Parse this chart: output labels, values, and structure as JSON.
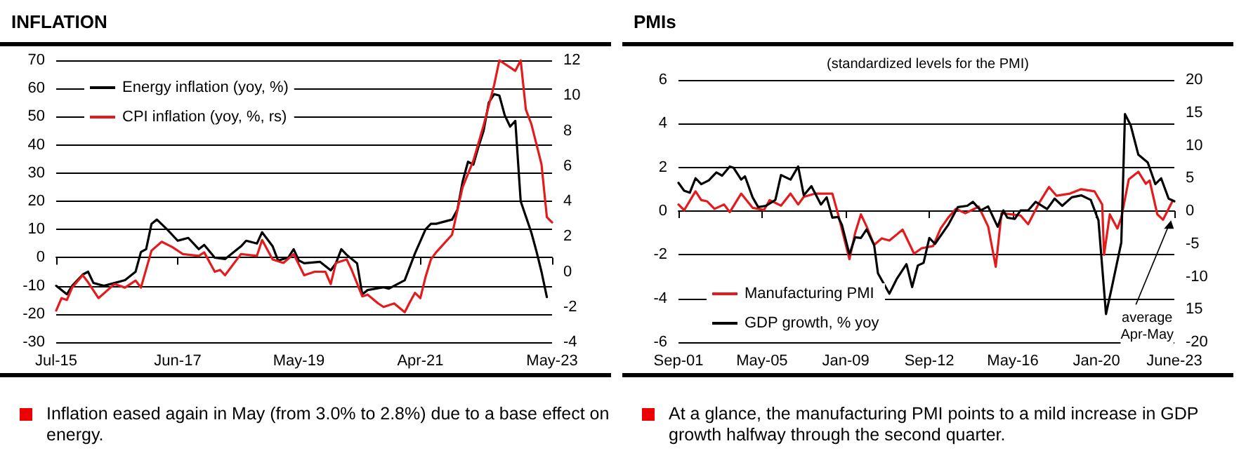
{
  "chart_data": [
    {
      "type": "line",
      "title": "INFLATION",
      "annotations": [
        "Inflation eased again in May (from 3.0% to 2.8%) due to a base effect on energy."
      ],
      "xlim": [
        "2015-07",
        "2023-05"
      ],
      "xticks": [
        {
          "value": "2015-07",
          "label": "Jul-15"
        },
        {
          "value": "2017-06",
          "label": "Jun-17"
        },
        {
          "value": "2019-05",
          "label": "May-19"
        },
        {
          "value": "2021-04",
          "label": "Apr-21"
        },
        {
          "value": "2023-05",
          "label": "May-23"
        }
      ],
      "ylim": [
        -30,
        70
      ],
      "yticks": [
        -30,
        -20,
        -10,
        0,
        10,
        20,
        30,
        40,
        50,
        60,
        70
      ],
      "y2lim": [
        -4,
        12
      ],
      "y2ticks": [
        -4,
        -2,
        0,
        2,
        4,
        6,
        8,
        10,
        12
      ],
      "grid": "y",
      "legend": "top left",
      "marker": "none",
      "series": [
        {
          "name": "Energy inflation (yoy, %)",
          "color": "#000000",
          "x": [
            "2015-07",
            "2015-09",
            "2015-10",
            "2015-12",
            "2016-01",
            "2016-02",
            "2016-04",
            "2016-06",
            "2016-08",
            "2016-10",
            "2016-11",
            "2016-12",
            "2017-01",
            "2017-02",
            "2017-04",
            "2017-06",
            "2017-08",
            "2017-10",
            "2017-11",
            "2018-01",
            "2018-03",
            "2018-06",
            "2018-07",
            "2018-09",
            "2018-10",
            "2018-12",
            "2019-01",
            "2019-03",
            "2019-04",
            "2019-05",
            "2019-06",
            "2019-09",
            "2019-11",
            "2019-12",
            "2020-01",
            "2020-02",
            "2020-04",
            "2020-05",
            "2020-06",
            "2020-09",
            "2020-10",
            "2020-11",
            "2021-01",
            "2021-03",
            "2021-05",
            "2021-06",
            "2021-07",
            "2021-10",
            "2021-11",
            "2021-12",
            "2022-01",
            "2022-02",
            "2022-03",
            "2022-04",
            "2022-05",
            "2022-06",
            "2022-07",
            "2022-08",
            "2022-09",
            "2022-10",
            "2022-11",
            "2023-01",
            "2023-02",
            "2023-03",
            "2023-04"
          ],
          "values": [
            -10,
            -13,
            -10,
            -6,
            -5,
            -9,
            -10,
            -9,
            -8,
            -5,
            2,
            3,
            12,
            13.5,
            10,
            6,
            7,
            3,
            4.5,
            0,
            -0.5,
            4,
            6,
            5,
            9,
            4,
            -1,
            0,
            3,
            -1,
            -2,
            -1.5,
            -4.5,
            -2,
            3,
            1,
            -2,
            -13,
            -11.5,
            -10.5,
            -11,
            -10,
            -8,
            1.5,
            10,
            12,
            12,
            13.5,
            17,
            27,
            34,
            33,
            39,
            45,
            55,
            58,
            57.5,
            50.5,
            46.5,
            48.5,
            20,
            9,
            2,
            -5,
            -14
          ]
        },
        {
          "name": "CPI inflation (yoy, %, rs)",
          "color": "#e41a1c",
          "axis": "y2",
          "x": [
            "2015-07",
            "2015-08",
            "2015-09",
            "2015-10",
            "2015-12",
            "2016-01",
            "2016-03",
            "2016-06",
            "2016-08",
            "2016-10",
            "2016-11",
            "2017-01",
            "2017-03",
            "2017-05",
            "2017-07",
            "2017-10",
            "2017-11",
            "2018-01",
            "2018-02",
            "2018-03",
            "2018-06",
            "2018-09",
            "2018-10",
            "2018-12",
            "2019-02",
            "2019-04",
            "2019-06",
            "2019-08",
            "2019-10",
            "2019-11",
            "2019-12",
            "2020-02",
            "2020-03",
            "2020-05",
            "2020-06",
            "2020-08",
            "2020-09",
            "2020-11",
            "2021-01",
            "2021-02",
            "2021-03",
            "2021-04",
            "2021-05",
            "2021-06",
            "2021-07",
            "2021-10",
            "2021-11",
            "2021-12",
            "2022-02",
            "2022-04",
            "2022-06",
            "2022-07",
            "2022-09",
            "2022-10",
            "2022-11",
            "2022-12",
            "2023-01",
            "2023-02",
            "2023-03",
            "2023-04",
            "2023-05"
          ],
          "values": [
            -2.2,
            -1.5,
            -1.6,
            -0.9,
            -0.2,
            -0.6,
            -1.5,
            -0.7,
            -0.9,
            -0.5,
            -0.9,
            1.2,
            1.7,
            1.4,
            1,
            0.9,
            1.1,
            0,
            0.1,
            -0.2,
            1,
            0.9,
            1.8,
            0.7,
            0.5,
            1,
            -0.2,
            0,
            0,
            -0.7,
            0.5,
            0.7,
            0.1,
            -1.4,
            -1.3,
            -1.8,
            -2,
            -1.8,
            -2.3,
            -1.7,
            -1.2,
            -1.5,
            -0.3,
            0.7,
            1.1,
            2.1,
            3.5,
            4.8,
            6.3,
            8.3,
            10.6,
            12,
            11.6,
            11.4,
            12,
            9.2,
            8.4,
            7.2,
            6.1,
            3.1,
            2.8
          ]
        }
      ]
    },
    {
      "type": "line",
      "title": "PMIs",
      "subtitle": "(standardized levels for the PMI)",
      "annotations": [
        {
          "text": "average Apr-May",
          "x": "2023-05",
          "y": -0.3
        },
        "At a glance, the manufacturing PMI points to a mild increase in GDP growth halfway through the second quarter."
      ],
      "xlim": [
        "2001-09",
        "2023-06"
      ],
      "xticks": [
        {
          "value": "2001-09",
          "label": "Sep-01"
        },
        {
          "value": "2005-05",
          "label": "May-05"
        },
        {
          "value": "2009-01",
          "label": "Jan-09"
        },
        {
          "value": "2012-09",
          "label": "Sep-12"
        },
        {
          "value": "2016-05",
          "label": "May-16"
        },
        {
          "value": "2020-01",
          "label": "Jan-20"
        },
        {
          "value": "2023-06",
          "label": "June-23"
        }
      ],
      "ylim": [
        -6,
        6
      ],
      "yticks": [
        -6,
        -4,
        -2,
        0,
        2,
        4,
        6
      ],
      "y2lim": [
        -20,
        20
      ],
      "y2ticks": [
        -20,
        {
          "value": -15,
          "label": "15"
        },
        -10,
        -5,
        0,
        5,
        10,
        15,
        20
      ],
      "grid": "y",
      "legend": "bottom left",
      "marker": "none",
      "series": [
        {
          "name": "Manufacturing PMI",
          "color": "#e41a1c",
          "x": [
            "2001-09",
            "2001-12",
            "2002-06",
            "2002-09",
            "2002-12",
            "2003-04",
            "2003-09",
            "2003-12",
            "2004-06",
            "2004-12",
            "2005-06",
            "2005-09",
            "2006-03",
            "2006-08",
            "2006-12",
            "2007-03",
            "2007-09",
            "2008-03",
            "2008-06",
            "2008-09",
            "2009-03",
            "2009-06",
            "2009-09",
            "2009-12",
            "2010-04",
            "2010-08",
            "2010-12",
            "2011-07",
            "2012-01",
            "2012-05",
            "2012-11",
            "2013-03",
            "2013-07",
            "2013-11",
            "2014-04",
            "2014-11",
            "2015-04",
            "2015-08",
            "2015-11",
            "2016-04",
            "2016-09",
            "2017-01",
            "2017-07",
            "2017-12",
            "2018-04",
            "2018-11",
            "2019-05",
            "2019-12",
            "2020-04",
            "2020-05",
            "2020-08",
            "2020-12",
            "2021-02",
            "2021-06",
            "2021-11",
            "2022-03",
            "2022-05",
            "2022-09",
            "2022-12",
            "2023-05"
          ],
          "values": [
            0.3,
            0.04,
            0.9,
            0.5,
            0.45,
            0.1,
            0.3,
            -0.05,
            0.8,
            0.15,
            0.05,
            0.5,
            0.25,
            0.8,
            0.3,
            0.65,
            0.8,
            0.8,
            0.8,
            -0.15,
            -2.2,
            -1,
            -0.15,
            -0.7,
            -1.55,
            -1.25,
            -1.35,
            -0.85,
            -1.95,
            -1.7,
            -1.6,
            -0.8,
            -0.3,
            0.1,
            -0.1,
            0.2,
            -0.7,
            -2.55,
            -0.1,
            -0.15,
            -0.2,
            -0.6,
            0.4,
            1.1,
            0.7,
            0.8,
            1,
            0.9,
            0.3,
            -2,
            -0.15,
            -0.8,
            -0.3,
            1.45,
            1.8,
            1.25,
            1.4,
            -0.15,
            -0.4,
            0.45
          ]
        },
        {
          "name": "GDP growth, % yoy",
          "color": "#000000",
          "axis": "y2",
          "x": [
            "2001-09",
            "2001-12",
            "2002-03",
            "2002-06",
            "2002-09",
            "2003-01",
            "2003-05",
            "2003-08",
            "2003-12",
            "2004-02",
            "2004-06",
            "2004-08",
            "2004-12",
            "2005-03",
            "2005-07",
            "2005-12",
            "2006-03",
            "2006-08",
            "2006-12",
            "2007-03",
            "2007-07",
            "2007-12",
            "2008-03",
            "2008-06",
            "2008-09",
            "2008-11",
            "2009-03",
            "2009-06",
            "2009-09",
            "2009-12",
            "2010-04",
            "2010-06",
            "2010-12",
            "2011-04",
            "2011-09",
            "2011-12",
            "2012-03",
            "2012-06",
            "2012-09",
            "2012-12",
            "2013-07",
            "2013-12",
            "2014-05",
            "2014-08",
            "2014-12",
            "2015-04",
            "2015-09",
            "2015-12",
            "2016-02",
            "2016-06",
            "2016-09",
            "2017-01",
            "2017-05",
            "2017-11",
            "2018-03",
            "2018-07",
            "2018-12",
            "2019-05",
            "2019-10",
            "2020-02",
            "2020-06",
            "2020-09",
            "2021-02",
            "2021-04",
            "2021-07",
            "2021-11",
            "2022-04",
            "2022-08",
            "2022-11",
            "2023-03",
            "2023-06"
          ],
          "values": [
            4.3,
            3.1,
            2.8,
            5,
            4.1,
            4.7,
            5.9,
            5.4,
            6.8,
            6.6,
            4.8,
            5.3,
            2.1,
            0.6,
            0.8,
            1.7,
            5.5,
            4.8,
            6.8,
            2.4,
            3.8,
            1,
            2.1,
            -1,
            -0.9,
            -2.1,
            -6.6,
            -4,
            -4.1,
            -2.8,
            -5.2,
            -9.5,
            -12.6,
            -10.3,
            -8.1,
            -11.6,
            -8.3,
            -7.9,
            -4.1,
            -5,
            -2.1,
            0.6,
            0.8,
            1.4,
            0.1,
            0.7,
            -2.4,
            0.1,
            -1,
            -1.2,
            0.1,
            0.1,
            1.4,
            0.3,
            1.9,
            0.8,
            2.1,
            2.4,
            1.7,
            -1.4,
            -15.7,
            -11.7,
            -4.8,
            14.8,
            13.1,
            8.6,
            7.4,
            4.1,
            5,
            1.9,
            1.5
          ]
        }
      ]
    }
  ]
}
